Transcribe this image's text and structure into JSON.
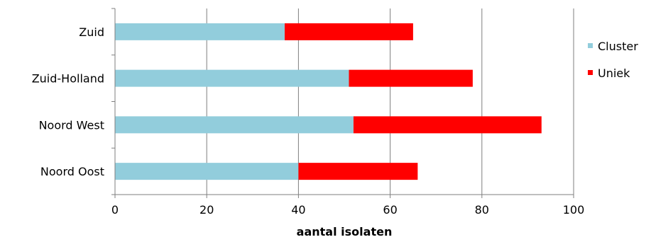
{
  "chart_data": {
    "type": "bar",
    "orientation": "horizontal",
    "stacked": true,
    "categories": [
      "Zuid",
      "Zuid-Holland",
      "Noord West",
      "Noord Oost"
    ],
    "series": [
      {
        "name": "Cluster",
        "color": "#92CDDC",
        "values": [
          37,
          51,
          52,
          40
        ]
      },
      {
        "name": "Uniek",
        "color": "#FF0000",
        "values": [
          28,
          27,
          41,
          26
        ]
      }
    ],
    "xlabel": "aantal isolaten",
    "ylabel": "",
    "xlim": [
      0,
      100
    ],
    "xticks": [
      "0",
      "20",
      "40",
      "60",
      "80",
      "100"
    ],
    "grid": "vertical",
    "legend": "right"
  }
}
